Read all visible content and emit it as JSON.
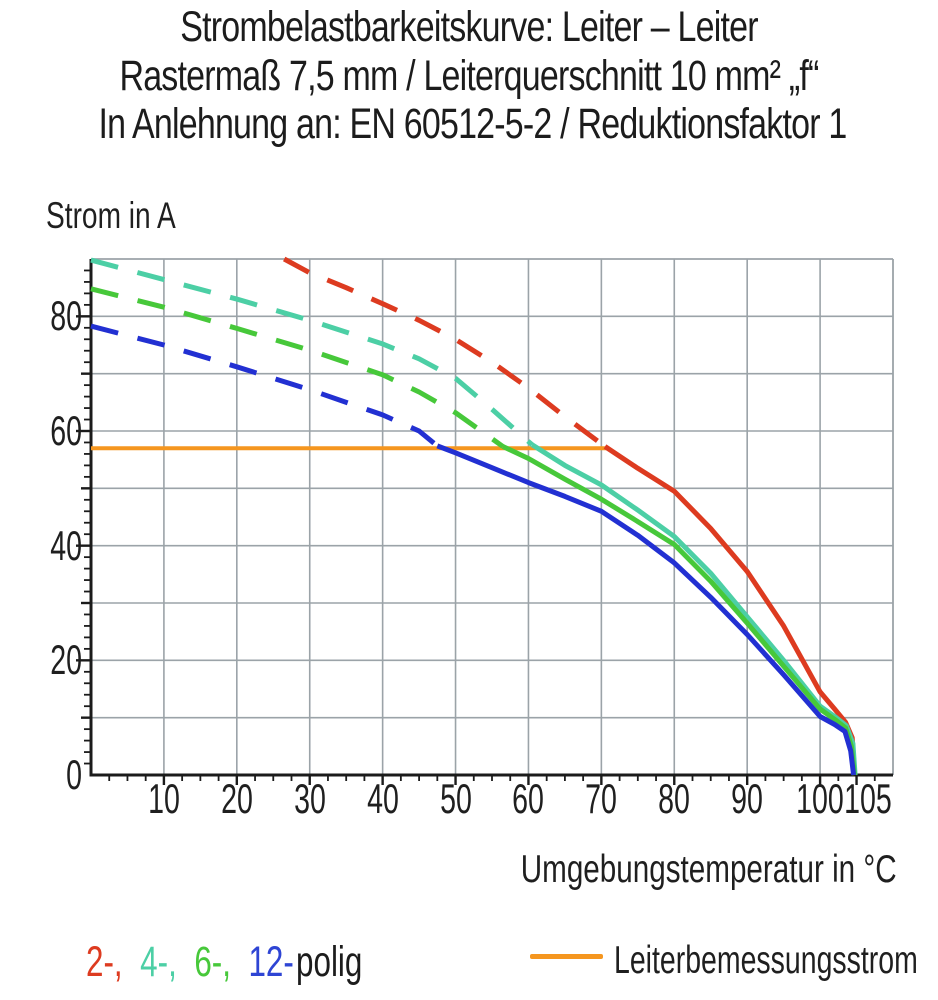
{
  "title": {
    "lines": [
      "Strombelastbarkeitskurve: Leiter – Leiter",
      "Rastermaß 7,5 mm / Leiterquerschnitt 10 mm² „f“",
      "In Anlehnung an: EN 60512-5-2 / Reduktionsfaktor 1"
    ]
  },
  "colors": {
    "grid": "#9ba3a8",
    "axis": "#1b1b1b",
    "text": "#1c1c1c"
  },
  "legend": {
    "poles": [
      {
        "text": "2-,",
        "color": "#dd3b20"
      },
      {
        "text": "4-,",
        "color": "#4ccfa5"
      },
      {
        "text": "6-,",
        "color": "#47c83a"
      },
      {
        "text": "12-",
        "color": "#2e45d4"
      }
    ],
    "polig_suffix": "polig"
  },
  "chart_data": {
    "type": "line",
    "title": "Strombelastbarkeitskurve: Leiter – Leiter",
    "x_axis": {
      "label": "Umgebungstemperatur in °C",
      "min": 0,
      "max": 110,
      "gridline_step": 10,
      "minor_tick_step": 2.5,
      "major_ticks": [
        10,
        20,
        30,
        40,
        50,
        60,
        70,
        80,
        90,
        100,
        105
      ],
      "labeled_ticks": [
        10,
        20,
        30,
        40,
        50,
        60,
        70,
        80,
        90,
        100,
        105
      ]
    },
    "y_axis": {
      "label": "Strom in A",
      "min": 0,
      "max": 90,
      "gridline_step": 10,
      "minor_tick_step": 2,
      "labeled_ticks": [
        0,
        20,
        40,
        60,
        80
      ]
    },
    "grid": true,
    "legend_position": "bottom",
    "rated_current_line": {
      "label": "Leiterbemessungsstrom",
      "color": "#f5961f",
      "value": 57,
      "x_from": 0,
      "x_to": 71
    },
    "series": [
      {
        "name": "2-polig",
        "color": "#dd3b20",
        "style_dashed_above_rated": true,
        "dashed_until_x": 70.5,
        "points": [
          [
            26.5,
            90
          ],
          [
            30,
            87.6
          ],
          [
            35,
            85
          ],
          [
            40,
            82.2
          ],
          [
            45,
            79.3
          ],
          [
            50,
            76
          ],
          [
            55,
            72
          ],
          [
            60,
            67.5
          ],
          [
            65,
            62.5
          ],
          [
            70.5,
            57.3
          ],
          [
            75,
            53.5
          ],
          [
            80,
            49.5
          ],
          [
            85,
            43
          ],
          [
            90,
            35.5
          ],
          [
            95,
            26
          ],
          [
            100,
            14.5
          ],
          [
            102,
            11.5
          ],
          [
            103.5,
            9.2
          ],
          [
            104.4,
            6.5
          ],
          [
            104.75,
            0
          ]
        ]
      },
      {
        "name": "4-polig",
        "color": "#4ccfa5",
        "style_dashed_above_rated": true,
        "dashed_until_x": 60.5,
        "points": [
          [
            0,
            89.8
          ],
          [
            10,
            86.4
          ],
          [
            20,
            83
          ],
          [
            30,
            79.3
          ],
          [
            40,
            75.2
          ],
          [
            45,
            72.6
          ],
          [
            50,
            69.2
          ],
          [
            55,
            63.8
          ],
          [
            60.5,
            57.6
          ],
          [
            65,
            54
          ],
          [
            70,
            50.6
          ],
          [
            75,
            46.2
          ],
          [
            80,
            41.6
          ],
          [
            85,
            35.2
          ],
          [
            90,
            27.6
          ],
          [
            95,
            20
          ],
          [
            100,
            12
          ],
          [
            102,
            10.2
          ],
          [
            103.6,
            8.6
          ],
          [
            104.5,
            5.5
          ],
          [
            104.8,
            0
          ]
        ]
      },
      {
        "name": "6-polig",
        "color": "#47c83a",
        "style_dashed_above_rated": true,
        "dashed_until_x": 56.5,
        "points": [
          [
            0,
            84.8
          ],
          [
            10,
            81.6
          ],
          [
            20,
            77.9
          ],
          [
            30,
            74.1
          ],
          [
            40,
            69.8
          ],
          [
            45,
            66.8
          ],
          [
            50,
            63.2
          ],
          [
            56.5,
            57.3
          ],
          [
            60,
            55.2
          ],
          [
            65,
            51.6
          ],
          [
            70,
            48.1
          ],
          [
            75,
            44.2
          ],
          [
            80,
            40.2
          ],
          [
            85,
            33.8
          ],
          [
            90,
            26.5
          ],
          [
            95,
            19
          ],
          [
            100,
            11.5
          ],
          [
            102,
            9.7
          ],
          [
            103.5,
            8.2
          ],
          [
            104.3,
            5
          ],
          [
            104.7,
            0
          ]
        ]
      },
      {
        "name": "12-polig",
        "color": "#2230d2",
        "style_dashed_above_rated": true,
        "dashed_until_x": 47.5,
        "points": [
          [
            0,
            78.3
          ],
          [
            10,
            75
          ],
          [
            20,
            71.2
          ],
          [
            30,
            67.2
          ],
          [
            40,
            62.8
          ],
          [
            45,
            60
          ],
          [
            47.5,
            57.4
          ],
          [
            50,
            56.2
          ],
          [
            55,
            53.6
          ],
          [
            60,
            51
          ],
          [
            65,
            48.6
          ],
          [
            70,
            46
          ],
          [
            75,
            41.8
          ],
          [
            80,
            37
          ],
          [
            85,
            31
          ],
          [
            90,
            24.5
          ],
          [
            95,
            17.5
          ],
          [
            100,
            10.2
          ],
          [
            102,
            8.8
          ],
          [
            103.4,
            7.6
          ],
          [
            104.2,
            4.2
          ],
          [
            104.6,
            0
          ]
        ]
      }
    ]
  }
}
